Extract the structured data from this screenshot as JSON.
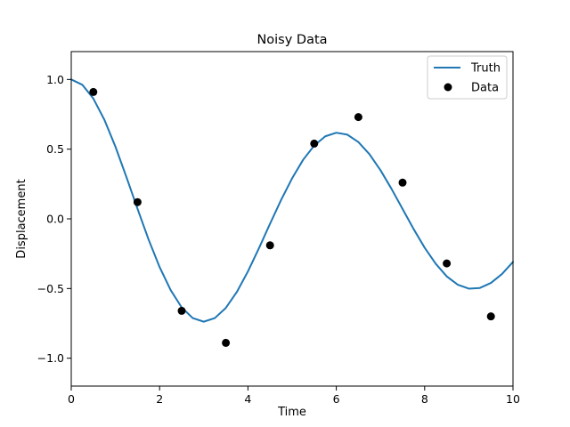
{
  "chart_data": {
    "type": "line",
    "title": "Noisy Data",
    "xlabel": "Time",
    "ylabel": "Displacement",
    "xlim": [
      0,
      10
    ],
    "ylim": [
      -1.2,
      1.2
    ],
    "xticks": [
      0,
      2,
      4,
      6,
      8,
      10
    ],
    "yticks": [
      1.0,
      0.5,
      0.0,
      -0.5,
      -1.0
    ],
    "xtick_labels": [
      "0",
      "2",
      "4",
      "6",
      "8",
      "10"
    ],
    "ytick_labels": [
      "1.0",
      "0.5",
      "0.0",
      "−0.5",
      "−1.0"
    ],
    "grid": false,
    "legend_position": "top-right",
    "series": [
      {
        "name": "Truth",
        "kind": "line",
        "color": "#1f77b4",
        "x": [
          0,
          0.25,
          0.5,
          0.75,
          1,
          1.25,
          1.5,
          1.75,
          2,
          2.25,
          2.5,
          2.75,
          3,
          3.25,
          3.5,
          3.75,
          4,
          4.25,
          4.5,
          4.75,
          5,
          5.25,
          5.5,
          5.75,
          6,
          6.25,
          6.5,
          6.75,
          7,
          7.25,
          7.5,
          7.75,
          8,
          8.25,
          8.5,
          8.75,
          9,
          9.25,
          9.5,
          9.75,
          10
        ],
        "y": [
          1.0,
          0.962,
          0.863,
          0.711,
          0.518,
          0.299,
          0.072,
          -0.148,
          -0.346,
          -0.511,
          -0.636,
          -0.712,
          -0.738,
          -0.712,
          -0.639,
          -0.524,
          -0.377,
          -0.21,
          -0.035,
          0.135,
          0.291,
          0.424,
          0.526,
          0.592,
          0.618,
          0.604,
          0.551,
          0.464,
          0.349,
          0.215,
          0.071,
          -0.073,
          -0.207,
          -0.322,
          -0.413,
          -0.473,
          -0.501,
          -0.496,
          -0.46,
          -0.396,
          -0.309
        ]
      },
      {
        "name": "Data",
        "kind": "scatter",
        "color": "#000000",
        "x": [
          0.5,
          1.5,
          2.5,
          3.5,
          4.5,
          5.5,
          6.5,
          7.5,
          8.5,
          9.5
        ],
        "y": [
          0.91,
          0.12,
          -0.66,
          -0.89,
          -0.19,
          0.54,
          0.73,
          0.26,
          -0.32,
          -0.7
        ]
      }
    ]
  }
}
